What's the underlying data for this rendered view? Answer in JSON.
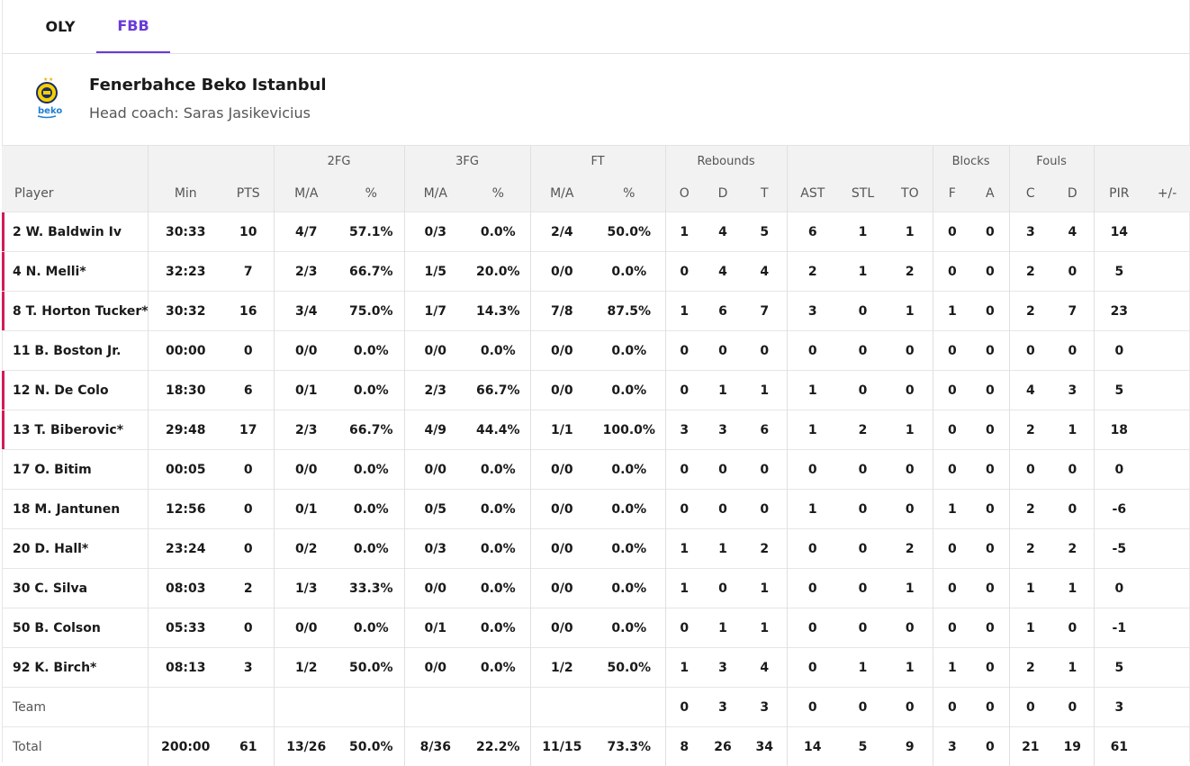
{
  "tabs": [
    {
      "label": "OLY",
      "active": false
    },
    {
      "label": "FBB",
      "active": true
    }
  ],
  "team": {
    "name": "Fenerbahce Beko Istanbul",
    "coach": "Head coach: Saras Jasikevicius",
    "logo_text": "beko"
  },
  "header": {
    "groups": {
      "fg2": "2FG",
      "fg3": "3FG",
      "ft": "FT",
      "reb": "Rebounds",
      "blk": "Blocks",
      "fouls": "Fouls"
    },
    "cols": [
      "Player",
      "Min",
      "PTS",
      "M/A",
      "%",
      "M/A",
      "%",
      "M/A",
      "%",
      "O",
      "D",
      "T",
      "AST",
      "STL",
      "TO",
      "F",
      "A",
      "C",
      "D",
      "PIR",
      "+/-"
    ]
  },
  "players": [
    {
      "name": "2 W. Baldwin Iv",
      "starter": true,
      "stats": [
        "30:33",
        "10",
        "4/7",
        "57.1%",
        "0/3",
        "0.0%",
        "2/4",
        "50.0%",
        "1",
        "4",
        "5",
        "6",
        "1",
        "1",
        "0",
        "0",
        "3",
        "4",
        "14",
        ""
      ]
    },
    {
      "name": "4 N. Melli*",
      "starter": true,
      "stats": [
        "32:23",
        "7",
        "2/3",
        "66.7%",
        "1/5",
        "20.0%",
        "0/0",
        "0.0%",
        "0",
        "4",
        "4",
        "2",
        "1",
        "2",
        "0",
        "0",
        "2",
        "0",
        "5",
        ""
      ]
    },
    {
      "name": "8 T. Horton Tucker*",
      "starter": true,
      "stats": [
        "30:32",
        "16",
        "3/4",
        "75.0%",
        "1/7",
        "14.3%",
        "7/8",
        "87.5%",
        "1",
        "6",
        "7",
        "3",
        "0",
        "1",
        "1",
        "0",
        "2",
        "7",
        "23",
        ""
      ]
    },
    {
      "name": "11 B. Boston Jr.",
      "starter": false,
      "stats": [
        "00:00",
        "0",
        "0/0",
        "0.0%",
        "0/0",
        "0.0%",
        "0/0",
        "0.0%",
        "0",
        "0",
        "0",
        "0",
        "0",
        "0",
        "0",
        "0",
        "0",
        "0",
        "0",
        ""
      ]
    },
    {
      "name": "12 N. De Colo",
      "starter": true,
      "stats": [
        "18:30",
        "6",
        "0/1",
        "0.0%",
        "2/3",
        "66.7%",
        "0/0",
        "0.0%",
        "0",
        "1",
        "1",
        "1",
        "0",
        "0",
        "0",
        "0",
        "4",
        "3",
        "5",
        ""
      ]
    },
    {
      "name": "13 T. Biberovic*",
      "starter": true,
      "stats": [
        "29:48",
        "17",
        "2/3",
        "66.7%",
        "4/9",
        "44.4%",
        "1/1",
        "100.0%",
        "3",
        "3",
        "6",
        "1",
        "2",
        "1",
        "0",
        "0",
        "2",
        "1",
        "18",
        ""
      ]
    },
    {
      "name": "17 O. Bitim",
      "starter": false,
      "stats": [
        "00:05",
        "0",
        "0/0",
        "0.0%",
        "0/0",
        "0.0%",
        "0/0",
        "0.0%",
        "0",
        "0",
        "0",
        "0",
        "0",
        "0",
        "0",
        "0",
        "0",
        "0",
        "0",
        ""
      ]
    },
    {
      "name": "18 M. Jantunen",
      "starter": false,
      "stats": [
        "12:56",
        "0",
        "0/1",
        "0.0%",
        "0/5",
        "0.0%",
        "0/0",
        "0.0%",
        "0",
        "0",
        "0",
        "1",
        "0",
        "0",
        "1",
        "0",
        "2",
        "0",
        "-6",
        ""
      ]
    },
    {
      "name": "20 D. Hall*",
      "starter": false,
      "stats": [
        "23:24",
        "0",
        "0/2",
        "0.0%",
        "0/3",
        "0.0%",
        "0/0",
        "0.0%",
        "1",
        "1",
        "2",
        "0",
        "0",
        "2",
        "0",
        "0",
        "2",
        "2",
        "-5",
        ""
      ]
    },
    {
      "name": "30 C. Silva",
      "starter": false,
      "stats": [
        "08:03",
        "2",
        "1/3",
        "33.3%",
        "0/0",
        "0.0%",
        "0/0",
        "0.0%",
        "1",
        "0",
        "1",
        "0",
        "0",
        "1",
        "0",
        "0",
        "1",
        "1",
        "0",
        ""
      ]
    },
    {
      "name": "50 B. Colson",
      "starter": false,
      "stats": [
        "05:33",
        "0",
        "0/0",
        "0.0%",
        "0/1",
        "0.0%",
        "0/0",
        "0.0%",
        "0",
        "1",
        "1",
        "0",
        "0",
        "0",
        "0",
        "0",
        "1",
        "0",
        "-1",
        ""
      ]
    },
    {
      "name": "92 K. Birch*",
      "starter": false,
      "stats": [
        "08:13",
        "3",
        "1/2",
        "50.0%",
        "0/0",
        "0.0%",
        "1/2",
        "50.0%",
        "1",
        "3",
        "4",
        "0",
        "1",
        "1",
        "1",
        "0",
        "2",
        "1",
        "5",
        ""
      ]
    }
  ],
  "team_row": {
    "name": "Team",
    "stats": [
      "",
      "",
      "",
      "",
      "",
      "",
      "",
      "",
      "0",
      "3",
      "3",
      "0",
      "0",
      "0",
      "0",
      "0",
      "0",
      "0",
      "3",
      ""
    ]
  },
  "total_row": {
    "name": "Total",
    "stats": [
      "200:00",
      "61",
      "13/26",
      "50.0%",
      "8/36",
      "22.2%",
      "11/15",
      "73.3%",
      "8",
      "26",
      "34",
      "14",
      "5",
      "9",
      "3",
      "0",
      "21",
      "19",
      "61",
      ""
    ]
  },
  "colors": {
    "accent": "#6a3ad9",
    "starter_marker": "#d31b5a",
    "header_bg": "#f2f2f2"
  }
}
